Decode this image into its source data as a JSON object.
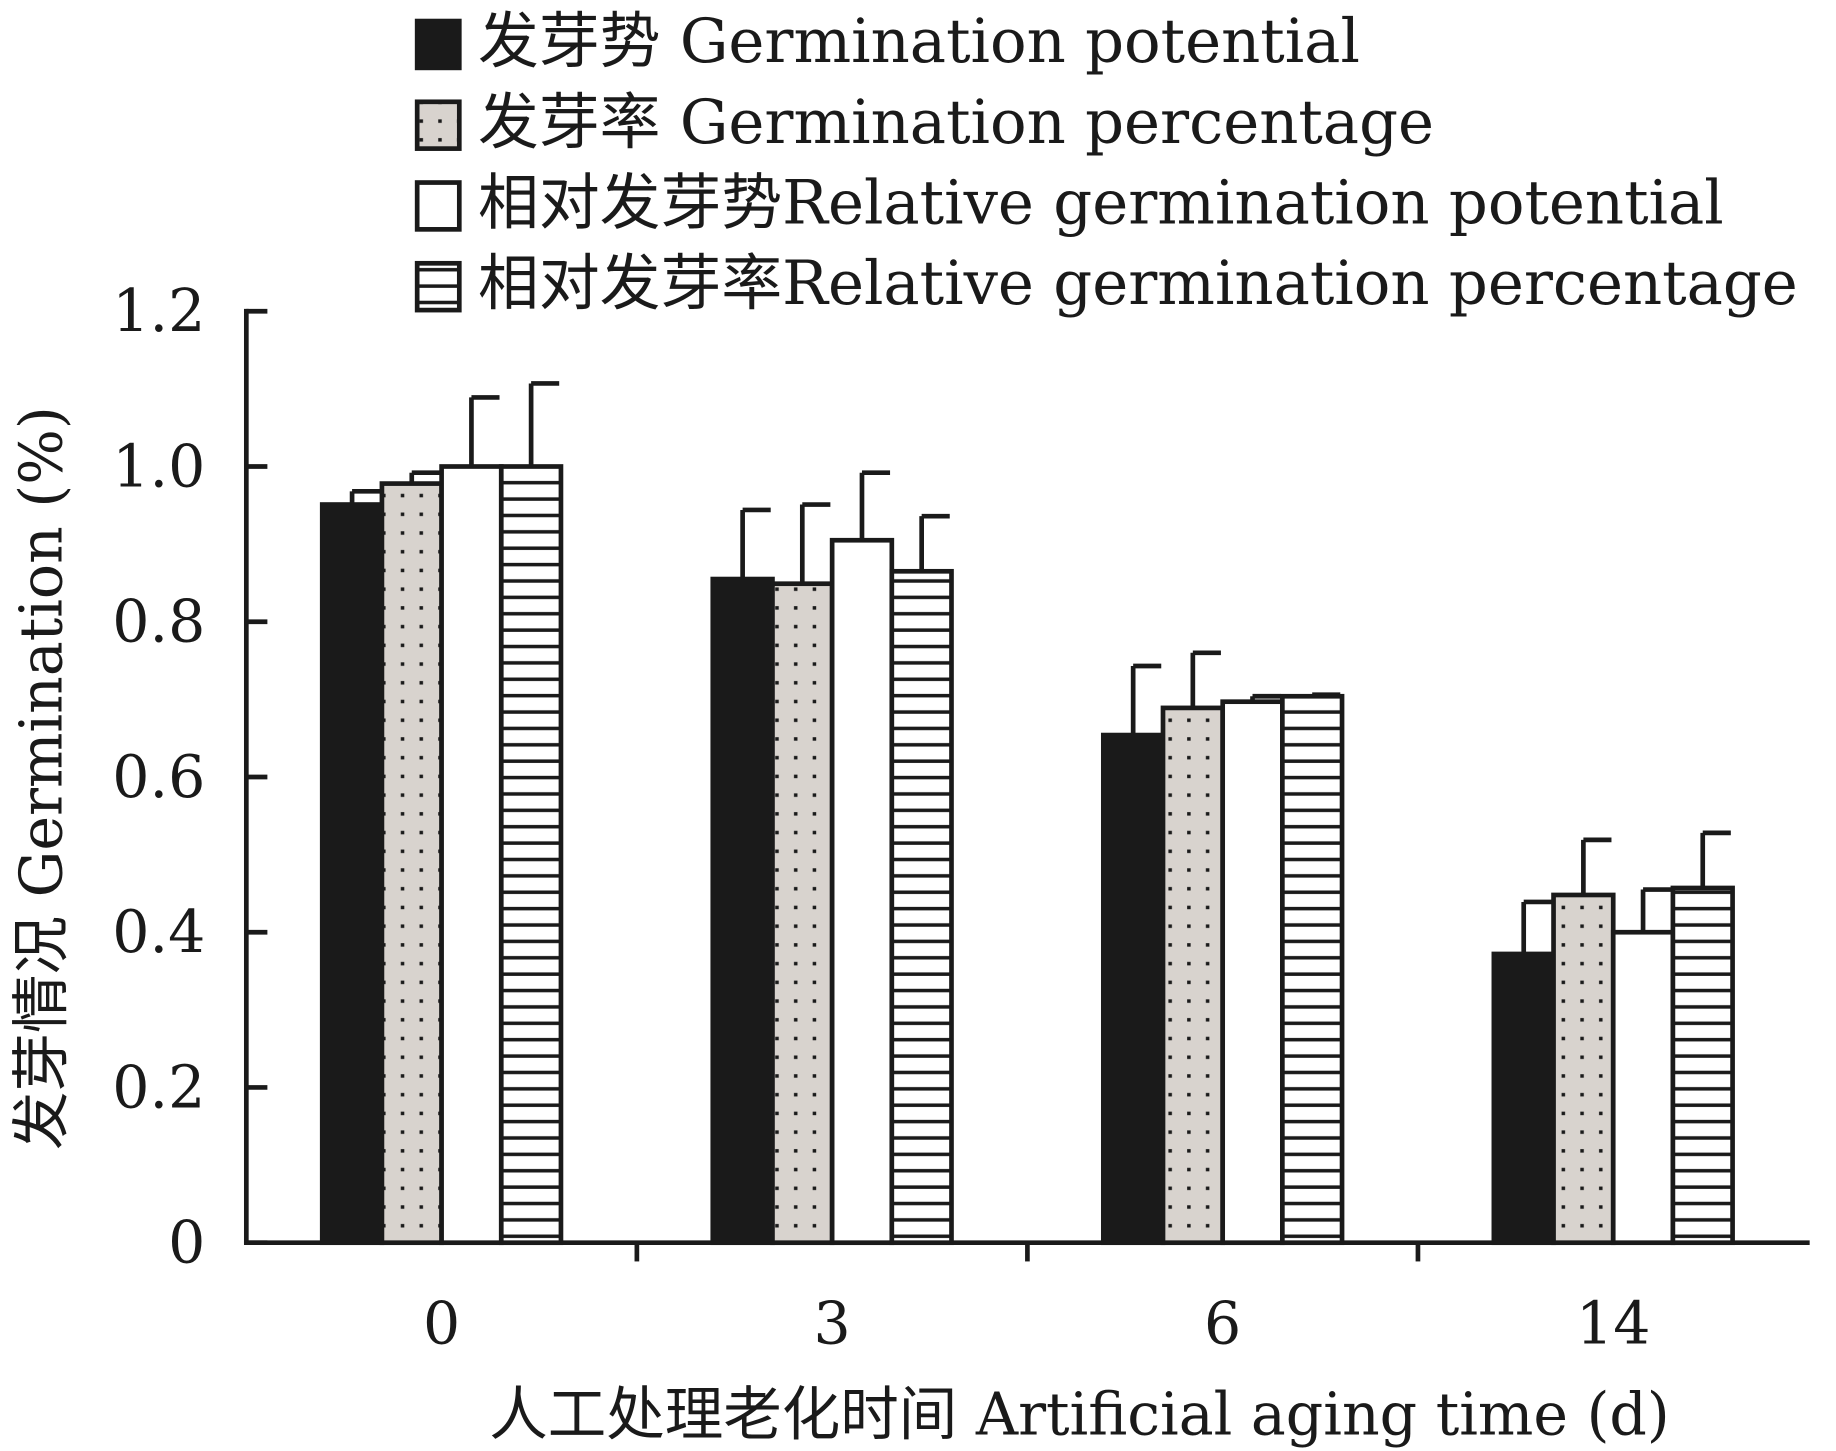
{
  "chart_data": {
    "type": "bar",
    "title": "",
    "xlabel": "人工处理老化时间 Artificial aging time (d)",
    "ylabel": "发芽情况 Germination (%)",
    "ylim": [
      0,
      1.2
    ],
    "yticks": [
      "0",
      "0.2",
      "0.4",
      "0.6",
      "0.8",
      "1.0",
      "1.2"
    ],
    "categories": [
      "0",
      "3",
      "6",
      "14"
    ],
    "legend_position": "top",
    "series": [
      {
        "name": "发芽势 Germination potential",
        "pattern": "solid",
        "values": [
          0.951,
          0.855,
          0.654,
          0.372
        ],
        "error": [
          0.017,
          0.089,
          0.089,
          0.067
        ]
      },
      {
        "name": "发芽率 Germination percentage",
        "pattern": "dotted",
        "values": [
          0.978,
          0.849,
          0.689,
          0.448
        ],
        "error": [
          0.014,
          0.102,
          0.071,
          0.071
        ]
      },
      {
        "name": "相对发芽势Relative germination potential",
        "pattern": "white",
        "values": [
          1.0,
          0.905,
          0.697,
          0.4
        ],
        "error": [
          0.089,
          0.087,
          0.007,
          0.055
        ]
      },
      {
        "name": "相对发芽率Relative germination percentage",
        "pattern": "striped",
        "values": [
          1.0,
          0.865,
          0.704,
          0.457
        ],
        "error": [
          0.107,
          0.071,
          0.002,
          0.071
        ]
      }
    ],
    "colors": {
      "solid": "#1a1a1a",
      "dotted_fill": "#d8d3ce",
      "white": "#ffffff",
      "line": "#1a1a1a"
    }
  }
}
